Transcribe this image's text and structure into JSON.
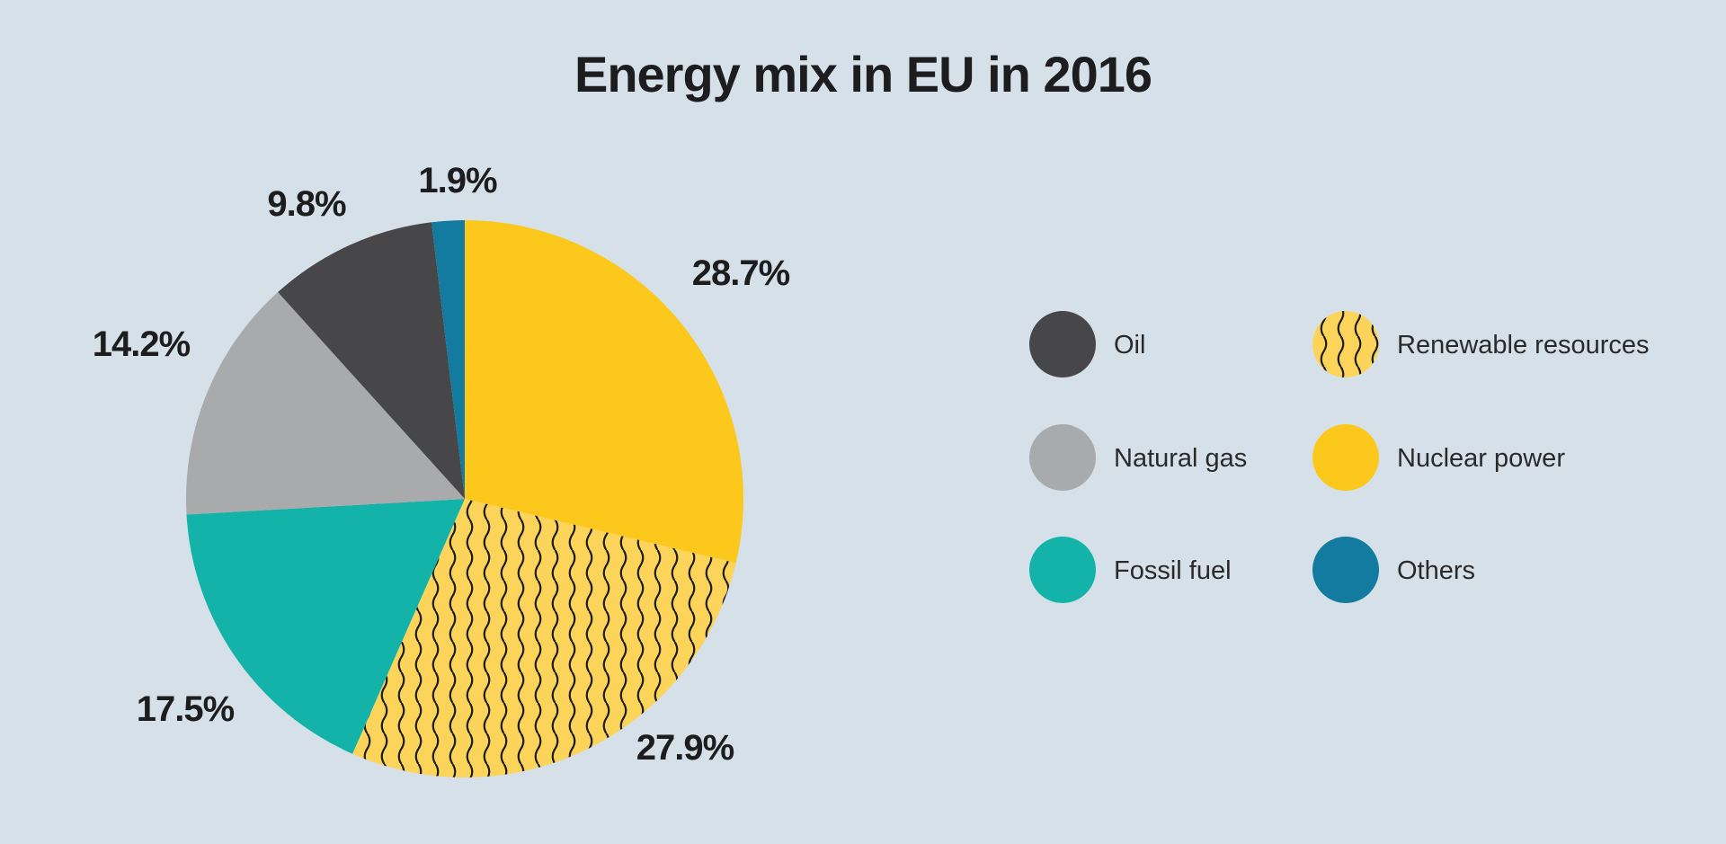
{
  "title": "Energy mix in EU in 2016",
  "chart_data": {
    "type": "pie",
    "title": "Energy mix in EU in 2016",
    "slices": [
      {
        "label": "Nuclear power",
        "value": 28.7,
        "value_label": "28.7%",
        "color": "#fcc81c",
        "pattern": "none"
      },
      {
        "label": "Renewable resources",
        "value": 27.9,
        "value_label": "27.9%",
        "color": "#fcd45a",
        "pattern": "wavy-lines"
      },
      {
        "label": "Fossil fuel",
        "value": 17.5,
        "value_label": "17.5%",
        "color": "#13b3a9",
        "pattern": "none"
      },
      {
        "label": "Natural gas",
        "value": 14.2,
        "value_label": "14.2%",
        "color": "#a9aaac",
        "pattern": "none"
      },
      {
        "label": "Oil",
        "value": 9.8,
        "value_label": "9.8%",
        "color": "#474648",
        "pattern": "none"
      },
      {
        "label": "Others",
        "value": 1.9,
        "value_label": "1.9%",
        "color": "#137aa0",
        "pattern": "none"
      }
    ],
    "start": "12 o'clock",
    "direction": "clockwise",
    "legend_placement": "right",
    "legend_order": [
      "Oil",
      "Renewable resources",
      "Natural gas",
      "Nuclear power",
      "Fossil fuel",
      "Others"
    ]
  }
}
